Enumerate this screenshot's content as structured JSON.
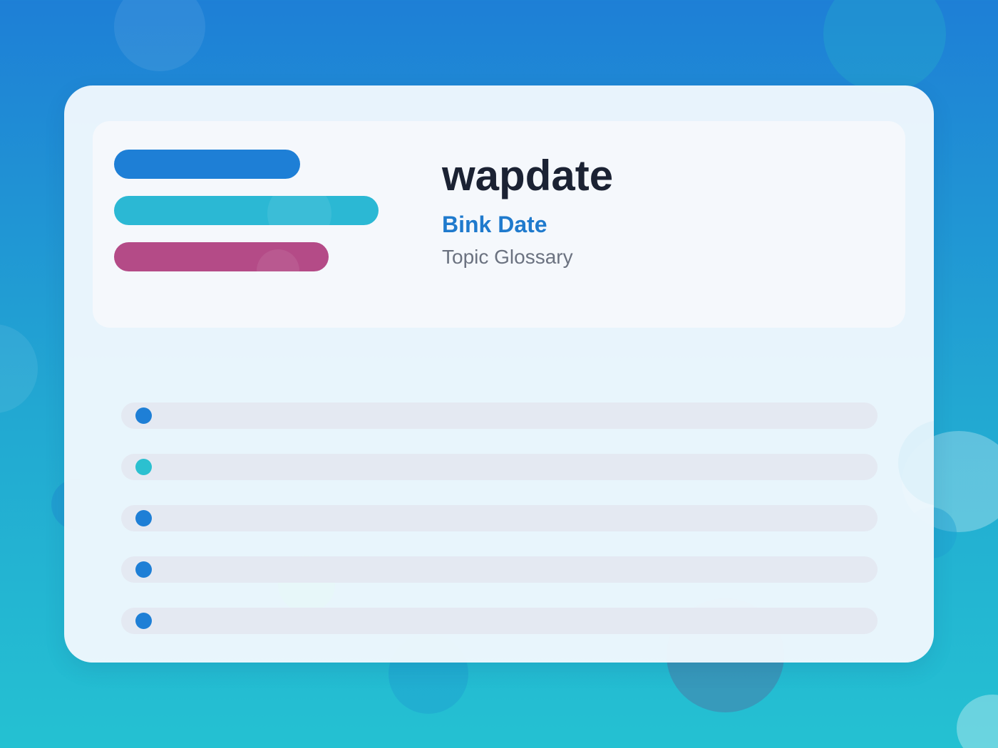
{
  "app": {
    "title": "wapdate",
    "subtitle": "Bink Date",
    "tagline": "Topic Glossary"
  },
  "colors": {
    "primary_blue": "#1e7fd6",
    "cyan": "#2bb8d4",
    "magenta": "#b44b87",
    "title_text": "#1b2233",
    "subtitle_text": "#1f7acd",
    "tagline_text": "#6b7280",
    "row_background": "#e4e9f2"
  },
  "logo_bars": [
    {
      "color": "#1e7fd6"
    },
    {
      "color": "#2bb8d4"
    },
    {
      "color": "#b44b87"
    }
  ],
  "glossary_rows": [
    {
      "dot_color": "#1e7fd6"
    },
    {
      "dot_color": "#2bc0d0"
    },
    {
      "dot_color": "#1e7fd6"
    },
    {
      "dot_color": "#1e7fd6"
    },
    {
      "dot_color": "#1e7fd6"
    }
  ]
}
